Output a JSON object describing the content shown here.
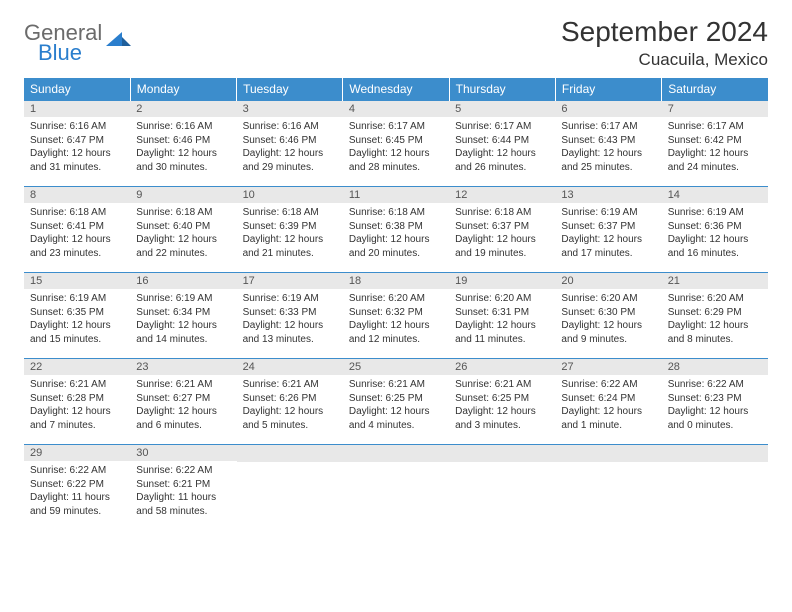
{
  "logo": {
    "text1": "General",
    "text2": "Blue"
  },
  "title": "September 2024",
  "location": "Cuacuila, Mexico",
  "colors": {
    "header_bg": "#3c8dcc",
    "header_text": "#ffffff",
    "daynum_bg": "#e8e8e8",
    "daynum_text": "#555555",
    "body_text": "#333333",
    "logo_gray": "#6b6b6b",
    "logo_blue": "#2a7ecd",
    "border": "#3c8dcc"
  },
  "typography": {
    "title_fontsize": 28,
    "location_fontsize": 17,
    "dayheader_fontsize": 12,
    "daynum_fontsize": 11,
    "cell_fontsize": 10
  },
  "day_headers": [
    "Sunday",
    "Monday",
    "Tuesday",
    "Wednesday",
    "Thursday",
    "Friday",
    "Saturday"
  ],
  "weeks": [
    [
      {
        "n": "1",
        "sr": "Sunrise: 6:16 AM",
        "ss": "Sunset: 6:47 PM",
        "d1": "Daylight: 12 hours",
        "d2": "and 31 minutes."
      },
      {
        "n": "2",
        "sr": "Sunrise: 6:16 AM",
        "ss": "Sunset: 6:46 PM",
        "d1": "Daylight: 12 hours",
        "d2": "and 30 minutes."
      },
      {
        "n": "3",
        "sr": "Sunrise: 6:16 AM",
        "ss": "Sunset: 6:46 PM",
        "d1": "Daylight: 12 hours",
        "d2": "and 29 minutes."
      },
      {
        "n": "4",
        "sr": "Sunrise: 6:17 AM",
        "ss": "Sunset: 6:45 PM",
        "d1": "Daylight: 12 hours",
        "d2": "and 28 minutes."
      },
      {
        "n": "5",
        "sr": "Sunrise: 6:17 AM",
        "ss": "Sunset: 6:44 PM",
        "d1": "Daylight: 12 hours",
        "d2": "and 26 minutes."
      },
      {
        "n": "6",
        "sr": "Sunrise: 6:17 AM",
        "ss": "Sunset: 6:43 PM",
        "d1": "Daylight: 12 hours",
        "d2": "and 25 minutes."
      },
      {
        "n": "7",
        "sr": "Sunrise: 6:17 AM",
        "ss": "Sunset: 6:42 PM",
        "d1": "Daylight: 12 hours",
        "d2": "and 24 minutes."
      }
    ],
    [
      {
        "n": "8",
        "sr": "Sunrise: 6:18 AM",
        "ss": "Sunset: 6:41 PM",
        "d1": "Daylight: 12 hours",
        "d2": "and 23 minutes."
      },
      {
        "n": "9",
        "sr": "Sunrise: 6:18 AM",
        "ss": "Sunset: 6:40 PM",
        "d1": "Daylight: 12 hours",
        "d2": "and 22 minutes."
      },
      {
        "n": "10",
        "sr": "Sunrise: 6:18 AM",
        "ss": "Sunset: 6:39 PM",
        "d1": "Daylight: 12 hours",
        "d2": "and 21 minutes."
      },
      {
        "n": "11",
        "sr": "Sunrise: 6:18 AM",
        "ss": "Sunset: 6:38 PM",
        "d1": "Daylight: 12 hours",
        "d2": "and 20 minutes."
      },
      {
        "n": "12",
        "sr": "Sunrise: 6:18 AM",
        "ss": "Sunset: 6:37 PM",
        "d1": "Daylight: 12 hours",
        "d2": "and 19 minutes."
      },
      {
        "n": "13",
        "sr": "Sunrise: 6:19 AM",
        "ss": "Sunset: 6:37 PM",
        "d1": "Daylight: 12 hours",
        "d2": "and 17 minutes."
      },
      {
        "n": "14",
        "sr": "Sunrise: 6:19 AM",
        "ss": "Sunset: 6:36 PM",
        "d1": "Daylight: 12 hours",
        "d2": "and 16 minutes."
      }
    ],
    [
      {
        "n": "15",
        "sr": "Sunrise: 6:19 AM",
        "ss": "Sunset: 6:35 PM",
        "d1": "Daylight: 12 hours",
        "d2": "and 15 minutes."
      },
      {
        "n": "16",
        "sr": "Sunrise: 6:19 AM",
        "ss": "Sunset: 6:34 PM",
        "d1": "Daylight: 12 hours",
        "d2": "and 14 minutes."
      },
      {
        "n": "17",
        "sr": "Sunrise: 6:19 AM",
        "ss": "Sunset: 6:33 PM",
        "d1": "Daylight: 12 hours",
        "d2": "and 13 minutes."
      },
      {
        "n": "18",
        "sr": "Sunrise: 6:20 AM",
        "ss": "Sunset: 6:32 PM",
        "d1": "Daylight: 12 hours",
        "d2": "and 12 minutes."
      },
      {
        "n": "19",
        "sr": "Sunrise: 6:20 AM",
        "ss": "Sunset: 6:31 PM",
        "d1": "Daylight: 12 hours",
        "d2": "and 11 minutes."
      },
      {
        "n": "20",
        "sr": "Sunrise: 6:20 AM",
        "ss": "Sunset: 6:30 PM",
        "d1": "Daylight: 12 hours",
        "d2": "and 9 minutes."
      },
      {
        "n": "21",
        "sr": "Sunrise: 6:20 AM",
        "ss": "Sunset: 6:29 PM",
        "d1": "Daylight: 12 hours",
        "d2": "and 8 minutes."
      }
    ],
    [
      {
        "n": "22",
        "sr": "Sunrise: 6:21 AM",
        "ss": "Sunset: 6:28 PM",
        "d1": "Daylight: 12 hours",
        "d2": "and 7 minutes."
      },
      {
        "n": "23",
        "sr": "Sunrise: 6:21 AM",
        "ss": "Sunset: 6:27 PM",
        "d1": "Daylight: 12 hours",
        "d2": "and 6 minutes."
      },
      {
        "n": "24",
        "sr": "Sunrise: 6:21 AM",
        "ss": "Sunset: 6:26 PM",
        "d1": "Daylight: 12 hours",
        "d2": "and 5 minutes."
      },
      {
        "n": "25",
        "sr": "Sunrise: 6:21 AM",
        "ss": "Sunset: 6:25 PM",
        "d1": "Daylight: 12 hours",
        "d2": "and 4 minutes."
      },
      {
        "n": "26",
        "sr": "Sunrise: 6:21 AM",
        "ss": "Sunset: 6:25 PM",
        "d1": "Daylight: 12 hours",
        "d2": "and 3 minutes."
      },
      {
        "n": "27",
        "sr": "Sunrise: 6:22 AM",
        "ss": "Sunset: 6:24 PM",
        "d1": "Daylight: 12 hours",
        "d2": "and 1 minute."
      },
      {
        "n": "28",
        "sr": "Sunrise: 6:22 AM",
        "ss": "Sunset: 6:23 PM",
        "d1": "Daylight: 12 hours",
        "d2": "and 0 minutes."
      }
    ],
    [
      {
        "n": "29",
        "sr": "Sunrise: 6:22 AM",
        "ss": "Sunset: 6:22 PM",
        "d1": "Daylight: 11 hours",
        "d2": "and 59 minutes."
      },
      {
        "n": "30",
        "sr": "Sunrise: 6:22 AM",
        "ss": "Sunset: 6:21 PM",
        "d1": "Daylight: 11 hours",
        "d2": "and 58 minutes."
      },
      null,
      null,
      null,
      null,
      null
    ]
  ]
}
